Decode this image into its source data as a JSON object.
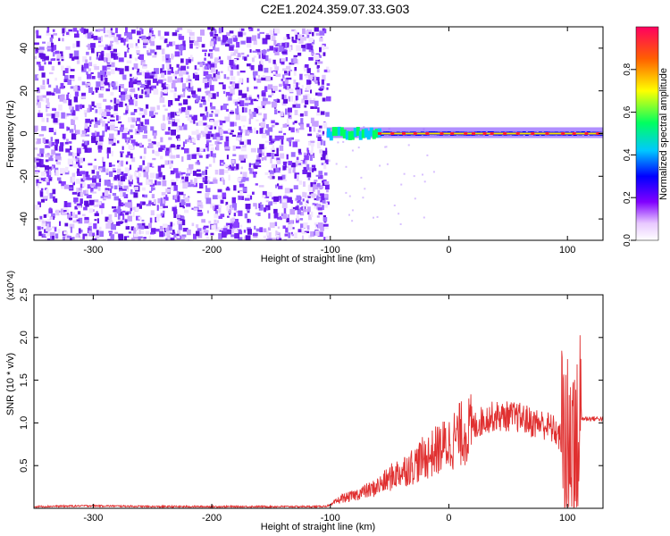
{
  "title": "C2E1.2024.359.07.33.G03",
  "chart_data": [
    {
      "type": "heatmap",
      "xlabel": "Height of straight line (km)",
      "ylabel": "Frequency (Hz)",
      "xlim": [
        -350,
        130
      ],
      "ylim": [
        -50,
        50
      ],
      "xticks": [
        -300,
        -200,
        -100,
        0,
        100
      ],
      "yticks": [
        -40,
        -20,
        0,
        20,
        40
      ],
      "xtick_labels": [
        "-300",
        "-200",
        "-100",
        "0",
        "100"
      ],
      "ytick_labels": [
        "-40",
        "-20",
        "0",
        "20",
        "40"
      ],
      "colorbar": {
        "label": "Normalized spectral amplitude",
        "ticks": [
          0.0,
          0.2,
          0.4,
          0.6,
          0.8
        ],
        "tick_labels": [
          "0.0",
          "0.2",
          "0.4",
          "0.6",
          "0.8"
        ],
        "range": [
          0,
          1
        ],
        "colors": [
          "#ffffff",
          "#7a00ff",
          "#0000ff",
          "#00c0ff",
          "#00ff40",
          "#ffff00",
          "#ff6000",
          "#ff0060"
        ]
      },
      "features": {
        "noise_region_x": [
          -350,
          -103
        ],
        "signal_onset_x": -103,
        "carrier_frequency_hz": 0,
        "carrier_strong_from_x": -60
      }
    },
    {
      "type": "line",
      "xlabel": "Height of straight line (km)",
      "ylabel": "SNR (10 * v/v)",
      "y_multiplier": "(x10^4)",
      "xlim": [
        -350,
        130
      ],
      "ylim": [
        0,
        2.5
      ],
      "xticks": [
        -300,
        -200,
        -100,
        0,
        100
      ],
      "yticks": [
        0.5,
        1.0,
        1.5,
        2.0,
        2.5
      ],
      "xtick_labels": [
        "-300",
        "-200",
        "-100",
        "0",
        "100"
      ],
      "ytick_labels": [
        "0.5",
        "1.0",
        "1.5",
        "2.0",
        "2.5"
      ],
      "series_color": "#e03030",
      "x": [
        -350,
        -300,
        -250,
        -200,
        -150,
        -110,
        -100,
        -95,
        -90,
        -85,
        -80,
        -75,
        -70,
        -65,
        -60,
        -55,
        -50,
        -45,
        -40,
        -35,
        -30,
        -25,
        -20,
        -15,
        -10,
        -5,
        0,
        5,
        10,
        15,
        20,
        25,
        30,
        35,
        40,
        45,
        50,
        55,
        60,
        65,
        70,
        75,
        80,
        85,
        90,
        95,
        100,
        103,
        105,
        107,
        110,
        115,
        120,
        125,
        130
      ],
      "values": [
        0.02,
        0.03,
        0.02,
        0.02,
        0.02,
        0.02,
        0.03,
        0.08,
        0.12,
        0.13,
        0.15,
        0.18,
        0.2,
        0.22,
        0.26,
        0.3,
        0.35,
        0.4,
        0.43,
        0.47,
        0.5,
        0.55,
        0.6,
        0.63,
        0.68,
        0.72,
        0.76,
        0.82,
        0.87,
        0.9,
        0.94,
        1.0,
        1.04,
        1.07,
        1.08,
        1.07,
        1.08,
        1.07,
        1.06,
        1.04,
        1.0,
        1.0,
        0.98,
        0.95,
        0.9,
        0.8,
        0.6,
        0.4,
        1.2,
        0.3,
        1.05,
        1.05,
        1.05,
        1.05,
        1.05
      ]
    }
  ]
}
